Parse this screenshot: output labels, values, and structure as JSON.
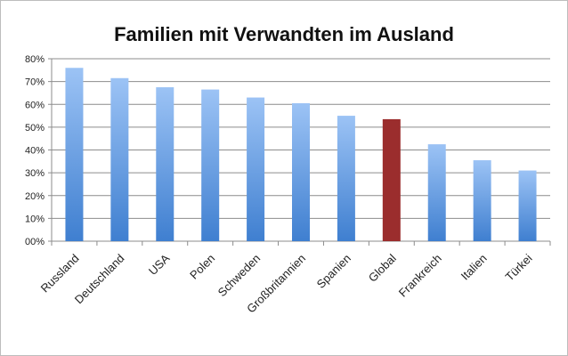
{
  "chart_data": {
    "type": "bar",
    "title": "Familien mit Verwandten im Ausland",
    "xlabel": "",
    "ylabel": "",
    "categories": [
      "Russland",
      "Deutschland",
      "USA",
      "Polen",
      "Schweden",
      "Großbritannien",
      "Spanien",
      "Global",
      "Frankreich",
      "Italien",
      "Türkei"
    ],
    "values": [
      76,
      71.5,
      67.5,
      66.5,
      63,
      60.5,
      55,
      53.5,
      42.5,
      35.5,
      31
    ],
    "highlight_index": 7,
    "ylim": [
      0,
      80
    ],
    "yticks": [
      0,
      10,
      20,
      30,
      40,
      50,
      60,
      70,
      80
    ],
    "ytick_labels": [
      "00%",
      "10%",
      "20%",
      "30%",
      "40%",
      "50%",
      "60%",
      "70%",
      "80%"
    ],
    "grid": true,
    "colors": {
      "bar_top": "#9cc3f5",
      "bar_bottom": "#3f7fd0",
      "highlight": "#9b2d2d",
      "grid": "#8c8c8c"
    }
  }
}
